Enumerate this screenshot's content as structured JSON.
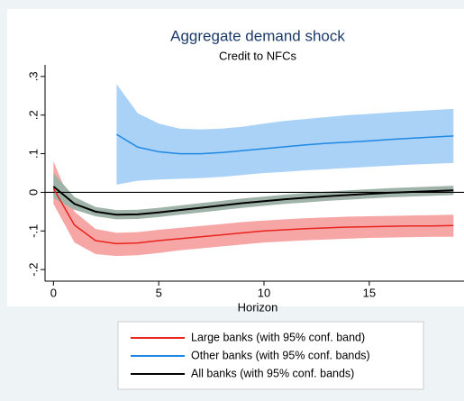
{
  "chart_data": {
    "type": "line",
    "title": "Aggregate demand shock",
    "subtitle": "Credit to NFCs",
    "x_label": "Horizon",
    "x": [
      0,
      1,
      2,
      3,
      4,
      5,
      6,
      7,
      8,
      9,
      10,
      11,
      12,
      13,
      14,
      15,
      16,
      17,
      18,
      19
    ],
    "xlim": [
      -0.4,
      19.5
    ],
    "xticks": [
      0,
      5,
      10,
      15
    ],
    "ylim": [
      -0.23,
      0.33
    ],
    "yticks": [
      {
        "value": -0.2,
        "label": "-.2"
      },
      {
        "value": -0.1,
        "label": "-.1"
      },
      0,
      {
        "value": 0.1,
        "label": ".1"
      },
      {
        "value": 0.2,
        "label": ".2"
      },
      {
        "value": 0.3,
        "label": ".3"
      }
    ],
    "zero_line": true,
    "series": [
      {
        "name": "Large banks (with 95% conf. band)",
        "color": "#e8241c",
        "band_color": "#f7a6a6",
        "values": [
          0.01,
          -0.085,
          -0.125,
          -0.133,
          -0.131,
          -0.125,
          -0.12,
          -0.115,
          -0.11,
          -0.105,
          -0.1,
          -0.097,
          -0.094,
          -0.092,
          -0.09,
          -0.089,
          -0.088,
          -0.087,
          -0.087,
          -0.086
        ],
        "lower": [
          -0.03,
          -0.13,
          -0.16,
          -0.165,
          -0.163,
          -0.157,
          -0.15,
          -0.145,
          -0.14,
          -0.135,
          -0.13,
          -0.127,
          -0.124,
          -0.122,
          -0.12,
          -0.118,
          -0.117,
          -0.116,
          -0.115,
          -0.115
        ],
        "upper": [
          0.08,
          -0.05,
          -0.095,
          -0.105,
          -0.103,
          -0.097,
          -0.092,
          -0.087,
          -0.082,
          -0.077,
          -0.073,
          -0.07,
          -0.067,
          -0.065,
          -0.063,
          -0.062,
          -0.061,
          -0.06,
          -0.059,
          -0.058
        ]
      },
      {
        "name": "Other banks (with 95% conf. bands)",
        "color": "#1e88e5",
        "band_color": "#aad2f7",
        "values": [
          null,
          null,
          null,
          0.15,
          0.117,
          0.105,
          0.1,
          0.1,
          0.103,
          0.108,
          0.113,
          0.118,
          0.123,
          0.127,
          0.13,
          0.133,
          0.137,
          0.14,
          0.143,
          0.146
        ],
        "lower": [
          null,
          null,
          null,
          0.02,
          0.03,
          0.033,
          0.035,
          0.037,
          0.04,
          0.045,
          0.05,
          0.053,
          0.057,
          0.06,
          0.063,
          0.066,
          0.069,
          0.072,
          0.074,
          0.076
        ],
        "upper": [
          null,
          null,
          null,
          0.28,
          0.205,
          0.178,
          0.165,
          0.163,
          0.165,
          0.17,
          0.178,
          0.185,
          0.19,
          0.195,
          0.2,
          0.203,
          0.207,
          0.21,
          0.213,
          0.216
        ]
      },
      {
        "name": "All banks (with 95% conf. bands)",
        "color": "#000000",
        "band_color": "#9fb3a8",
        "values": [
          0.015,
          -0.03,
          -0.05,
          -0.058,
          -0.057,
          -0.052,
          -0.046,
          -0.04,
          -0.034,
          -0.028,
          -0.023,
          -0.018,
          -0.014,
          -0.01,
          -0.007,
          -0.004,
          -0.001,
          0.001,
          0.003,
          0.005
        ],
        "lower": [
          -0.015,
          -0.045,
          -0.062,
          -0.07,
          -0.069,
          -0.064,
          -0.058,
          -0.052,
          -0.046,
          -0.04,
          -0.035,
          -0.03,
          -0.026,
          -0.022,
          -0.019,
          -0.016,
          -0.013,
          -0.011,
          -0.009,
          -0.007
        ],
        "upper": [
          0.05,
          -0.012,
          -0.038,
          -0.046,
          -0.045,
          -0.04,
          -0.034,
          -0.028,
          -0.022,
          -0.016,
          -0.011,
          -0.006,
          -0.002,
          0.002,
          0.005,
          0.008,
          0.011,
          0.013,
          0.015,
          0.017
        ]
      }
    ]
  }
}
